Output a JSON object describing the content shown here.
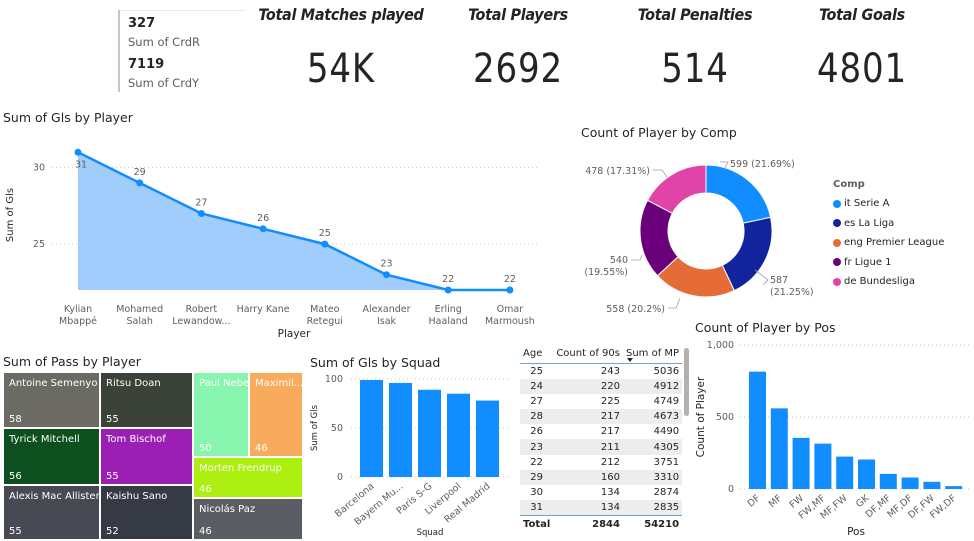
{
  "multi_card": {
    "items": [
      {
        "value": "327",
        "label": "Sum of CrdR"
      },
      {
        "value": "7119",
        "label": "Sum of CrdY"
      }
    ]
  },
  "kpis": [
    {
      "title": "Total Matches played",
      "value": "54K"
    },
    {
      "title": "Total Players",
      "value": "2692"
    },
    {
      "title": "Total Penalties",
      "value": "514"
    },
    {
      "title": "Total Goals",
      "value": "4801"
    }
  ],
  "chart_data": [
    {
      "id": "gls_by_player",
      "type": "area",
      "title": "Sum of Gls by Player",
      "xlabel": "Player",
      "ylabel": "Sum of Gls",
      "categories": [
        [
          "Kylian",
          "Mbappé"
        ],
        [
          "Mohamed",
          "Salah"
        ],
        [
          "Robert",
          "Lewandow..."
        ],
        [
          "Harry Kane"
        ],
        [
          "Mateo",
          "Retegui"
        ],
        [
          "Alexander",
          "Isak"
        ],
        [
          "Erling",
          "Haaland"
        ],
        [
          "Omar",
          "Marmoush"
        ]
      ],
      "values": [
        31,
        29,
        27,
        26,
        25,
        23,
        22,
        22
      ],
      "yticks": [
        25,
        30
      ],
      "ylim": [
        22,
        32
      ],
      "grid": true,
      "color": "#118dff",
      "fill": "#a0cdfb"
    },
    {
      "id": "player_by_comp",
      "type": "pie",
      "donut": true,
      "title": "Count of Player by Comp",
      "legend_title": "Comp",
      "legend_position": "right",
      "slices": [
        {
          "label": "it Serie A",
          "value": 599,
          "pct": "21.69%",
          "color": "#118dff"
        },
        {
          "label": "es La Liga",
          "value": 587,
          "pct": "21.25%",
          "color": "#12239e"
        },
        {
          "label": "eng Premier League",
          "value": 558,
          "pct": "20.2%",
          "color": "#e66c37"
        },
        {
          "label": "fr Ligue 1",
          "value": 540,
          "pct": "19.55%",
          "color": "#6b007b"
        },
        {
          "label": "de Bundesliga",
          "value": 478,
          "pct": "17.31%",
          "color": "#e044a7"
        }
      ]
    },
    {
      "id": "pass_by_player",
      "type": "treemap",
      "title": "Sum of Pass by Player",
      "items": [
        {
          "label": "Antoine Semenyo",
          "value": 58,
          "color": "#6b6b64",
          "text": "#ffffff"
        },
        {
          "label": "Ritsu Doan",
          "value": 55,
          "color": "#3b4237",
          "text": "#ffffff"
        },
        {
          "label": "Tyrick Mitchell",
          "value": 56,
          "color": "#0e4f1f",
          "text": "#ffffff"
        },
        {
          "label": "Tom Bischof",
          "value": 55,
          "color": "#9b1fb5",
          "text": "#ffffff"
        },
        {
          "label": "Alexis Mac Allister",
          "value": 55,
          "color": "#474a52",
          "text": "#ffffff"
        },
        {
          "label": "Kaishu Sano",
          "value": 52,
          "color": "#353a44",
          "text": "#ffffff"
        },
        {
          "label": "Paul Nebel",
          "value": 50,
          "color": "#87f5ae",
          "text": "#ffffff"
        },
        {
          "label": "Maximil...",
          "value": 46,
          "color": "#f8ab5c",
          "text": "#ffffff"
        },
        {
          "label": "Morten Frendrup",
          "value": 46,
          "color": "#adef11",
          "text": "#ffffff"
        },
        {
          "label": "Nicolás Paz",
          "value": 46,
          "color": "#5a5d63",
          "text": "#ffffff"
        }
      ]
    },
    {
      "id": "gls_by_squad",
      "type": "bar",
      "title": "Sum of Gls by Squad",
      "xlabel": "Squad",
      "ylabel": "Sum of Gls",
      "categories": [
        "Barcelona",
        "Bayern Mu...",
        "Paris S-G",
        "Liverpool",
        "Real Madrid"
      ],
      "values": [
        99,
        96,
        89,
        85,
        78
      ],
      "yticks": [
        0,
        50,
        100
      ],
      "ylim": [
        0,
        100
      ],
      "grid": true,
      "color": "#118dff"
    },
    {
      "id": "player_by_pos",
      "type": "bar",
      "title": "Count of Player by Pos",
      "xlabel": "Pos",
      "ylabel": "Count of Player",
      "categories": [
        "DF",
        "MF",
        "FW",
        "FW,MF",
        "MF,FW",
        "GK",
        "DF,MF",
        "MF,DF",
        "DF,FW",
        "FW,DF"
      ],
      "values": [
        815,
        560,
        355,
        315,
        225,
        205,
        105,
        80,
        50,
        20
      ],
      "yticks": [
        0,
        500,
        1000
      ],
      "ytick_labels": [
        "0",
        "500",
        "1,000"
      ],
      "ylim": [
        0,
        1000
      ],
      "grid": true,
      "color": "#118dff"
    },
    {
      "id": "age_matrix",
      "type": "table",
      "columns": [
        "Age",
        "Count of 90s",
        "Sum of MP"
      ],
      "sorted_column": "Sum of MP",
      "rows": [
        [
          "25",
          "243",
          "5036"
        ],
        [
          "24",
          "220",
          "4912"
        ],
        [
          "27",
          "225",
          "4749"
        ],
        [
          "28",
          "217",
          "4673"
        ],
        [
          "26",
          "217",
          "4490"
        ],
        [
          "23",
          "211",
          "4305"
        ],
        [
          "22",
          "212",
          "3751"
        ],
        [
          "29",
          "160",
          "3310"
        ],
        [
          "30",
          "134",
          "2874"
        ],
        [
          "31",
          "134",
          "2835"
        ]
      ],
      "total": [
        "Total",
        "2844",
        "54210"
      ]
    }
  ]
}
